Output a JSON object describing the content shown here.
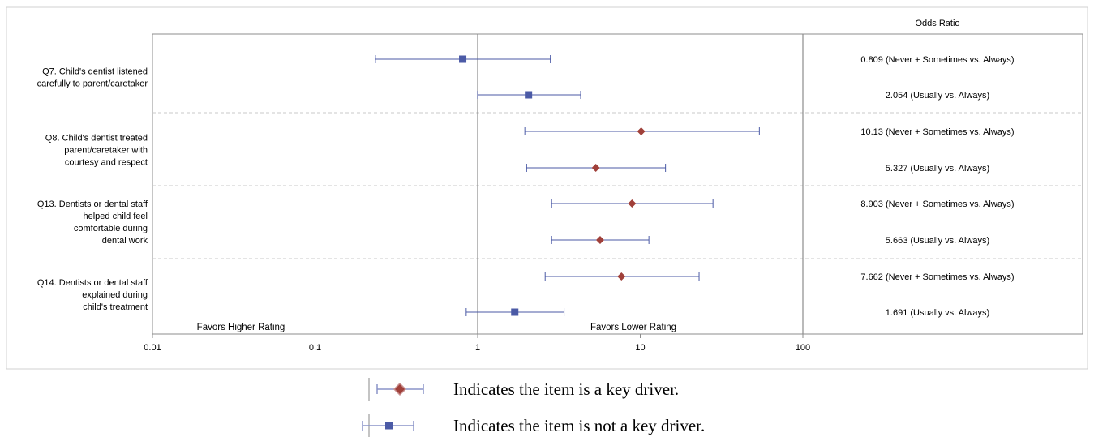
{
  "chart_data": {
    "type": "forest",
    "x_scale": "log",
    "xlim": [
      0.01,
      100
    ],
    "x_ticks": [
      {
        "value": 0.01,
        "label": "0.01"
      },
      {
        "value": 0.1,
        "label": "0.1"
      },
      {
        "value": 1,
        "label": "1"
      },
      {
        "value": 10,
        "label": "10"
      },
      {
        "value": 100,
        "label": "100"
      }
    ],
    "reference_line": 1,
    "column_header": "Odds Ratio",
    "region_labels": {
      "left": "Favors Higher Rating",
      "right": "Favors Lower Rating"
    },
    "groups": [
      {
        "label_lines": [
          "Q7. Child's dentist listened",
          "carefully to parent/caretaker"
        ],
        "rows": [
          {
            "estimate": 0.809,
            "lower": 0.235,
            "upper": 2.8,
            "key_driver": false,
            "label": "0.809 (Never + Sometimes vs. Always)"
          },
          {
            "estimate": 2.054,
            "lower": 1.0,
            "upper": 4.3,
            "key_driver": false,
            "label": "2.054 (Usually vs. Always)"
          }
        ]
      },
      {
        "label_lines": [
          "Q8. Child's dentist treated",
          "parent/caretaker with",
          "courtesy and respect"
        ],
        "rows": [
          {
            "estimate": 10.13,
            "lower": 1.95,
            "upper": 54,
            "key_driver": true,
            "label": "10.13 (Never + Sometimes vs. Always)"
          },
          {
            "estimate": 5.327,
            "lower": 2.0,
            "upper": 14.3,
            "key_driver": true,
            "label": "5.327 (Usually vs. Always)"
          }
        ]
      },
      {
        "label_lines": [
          "Q13. Dentists or dental staff",
          "helped child feel",
          "comfortable during",
          "dental work"
        ],
        "rows": [
          {
            "estimate": 8.903,
            "lower": 2.85,
            "upper": 28,
            "key_driver": true,
            "label": "8.903 (Never + Sometimes vs. Always)"
          },
          {
            "estimate": 5.663,
            "lower": 2.85,
            "upper": 11.3,
            "key_driver": true,
            "label": "5.663 (Usually vs. Always)"
          }
        ]
      },
      {
        "label_lines": [
          "Q14. Dentists or dental staff",
          "explained during",
          "child's treatment"
        ],
        "rows": [
          {
            "estimate": 7.662,
            "lower": 2.6,
            "upper": 23,
            "key_driver": true,
            "label": "7.662 (Never + Sometimes vs. Always)"
          },
          {
            "estimate": 1.691,
            "lower": 0.85,
            "upper": 3.4,
            "key_driver": false,
            "label": "1.691 (Usually vs. Always)"
          }
        ]
      }
    ]
  },
  "legend": {
    "key_driver": "Indicates the item is a key driver.",
    "not_key_driver": "Indicates the item is not a key driver."
  },
  "colors": {
    "key_driver_marker": "#a0403a",
    "not_key_driver_marker": "#4b5aa6",
    "ci_line": "#4b5aa6",
    "axis": "#8c8c8c",
    "separator": "#c8c8c8"
  }
}
